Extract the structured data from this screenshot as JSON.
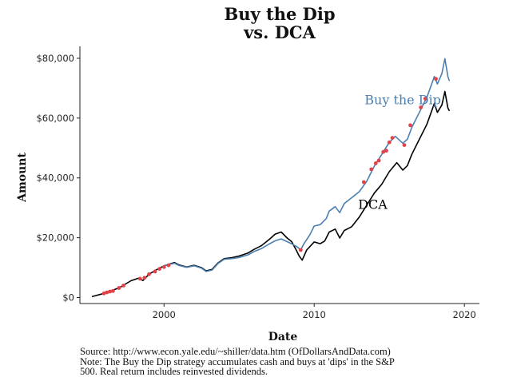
{
  "chart_data": {
    "type": "line",
    "title_line1": "Buy the Dip",
    "title_line2": "vs. DCA",
    "xlabel": "Date",
    "ylabel": "Amount",
    "xlim": [
      1994.4,
      2021.0
    ],
    "ylim": [
      -2000,
      84000
    ],
    "grid": false,
    "x_ticks": [
      {
        "value": 2000,
        "label": "2000"
      },
      {
        "value": 2010,
        "label": "2010"
      },
      {
        "value": 2020,
        "label": "2020"
      }
    ],
    "y_ticks": [
      {
        "value": 0,
        "label": "$0"
      },
      {
        "value": 20000,
        "label": "$20,000"
      },
      {
        "value": 40000,
        "label": "$40,000"
      },
      {
        "value": 60000,
        "label": "$60,000"
      },
      {
        "value": 80000,
        "label": "$80,000"
      }
    ],
    "series": [
      {
        "name": "DCA",
        "color": "#000000",
        "label_at": [
          2013.9,
          29600
        ],
        "points": [
          [
            1995.2,
            300
          ],
          [
            1996.0,
            1400
          ],
          [
            1997.0,
            3200
          ],
          [
            1997.8,
            5600
          ],
          [
            1998.3,
            6500
          ],
          [
            1998.6,
            5700
          ],
          [
            1999.0,
            7800
          ],
          [
            1999.5,
            9300
          ],
          [
            2000.0,
            10600
          ],
          [
            2000.7,
            11700
          ],
          [
            2001.0,
            10900
          ],
          [
            2001.5,
            10200
          ],
          [
            2002.0,
            10800
          ],
          [
            2002.5,
            10000
          ],
          [
            2002.8,
            8900
          ],
          [
            2003.2,
            9400
          ],
          [
            2003.6,
            11600
          ],
          [
            2004.0,
            13000
          ],
          [
            2004.5,
            13300
          ],
          [
            2005.0,
            13900
          ],
          [
            2005.6,
            14900
          ],
          [
            2006.0,
            16100
          ],
          [
            2006.5,
            17400
          ],
          [
            2007.0,
            19400
          ],
          [
            2007.4,
            21200
          ],
          [
            2007.8,
            21900
          ],
          [
            2008.2,
            19900
          ],
          [
            2008.5,
            18700
          ],
          [
            2008.8,
            15900
          ],
          [
            2009.0,
            13900
          ],
          [
            2009.2,
            12500
          ],
          [
            2009.5,
            15900
          ],
          [
            2010.0,
            18600
          ],
          [
            2010.4,
            18000
          ],
          [
            2010.7,
            18900
          ],
          [
            2011.0,
            21900
          ],
          [
            2011.4,
            22900
          ],
          [
            2011.7,
            19900
          ],
          [
            2012.0,
            22400
          ],
          [
            2012.5,
            23700
          ],
          [
            2013.0,
            26900
          ],
          [
            2013.5,
            30900
          ],
          [
            2014.0,
            34900
          ],
          [
            2014.5,
            37900
          ],
          [
            2015.0,
            42100
          ],
          [
            2015.5,
            45100
          ],
          [
            2015.9,
            42600
          ],
          [
            2016.2,
            44100
          ],
          [
            2016.5,
            47900
          ],
          [
            2017.0,
            52900
          ],
          [
            2017.5,
            57900
          ],
          [
            2018.0,
            64900
          ],
          [
            2018.2,
            61900
          ],
          [
            2018.5,
            64400
          ],
          [
            2018.7,
            68900
          ],
          [
            2018.9,
            63400
          ],
          [
            2019.0,
            62400
          ]
        ]
      },
      {
        "name": "Buy the Dip",
        "color": "#4a7fb0",
        "label_at": [
          2015.9,
          64600
        ],
        "points": [
          [
            2000.0,
            10600
          ],
          [
            2000.7,
            11500
          ],
          [
            2001.0,
            10700
          ],
          [
            2001.5,
            10100
          ],
          [
            2002.0,
            10600
          ],
          [
            2002.5,
            9800
          ],
          [
            2002.8,
            8700
          ],
          [
            2003.2,
            9200
          ],
          [
            2003.6,
            11400
          ],
          [
            2004.0,
            12800
          ],
          [
            2004.5,
            13000
          ],
          [
            2005.0,
            13400
          ],
          [
            2005.6,
            14300
          ],
          [
            2006.0,
            15400
          ],
          [
            2006.5,
            16400
          ],
          [
            2007.0,
            17900
          ],
          [
            2007.4,
            19000
          ],
          [
            2007.8,
            19600
          ],
          [
            2008.2,
            18700
          ],
          [
            2008.6,
            17700
          ],
          [
            2008.9,
            16800
          ],
          [
            2009.1,
            15900
          ],
          [
            2009.3,
            17900
          ],
          [
            2009.7,
            20900
          ],
          [
            2010.0,
            23900
          ],
          [
            2010.4,
            24400
          ],
          [
            2010.8,
            26400
          ],
          [
            2011.0,
            28900
          ],
          [
            2011.4,
            30400
          ],
          [
            2011.7,
            28400
          ],
          [
            2012.0,
            31400
          ],
          [
            2012.5,
            33400
          ],
          [
            2013.0,
            35400
          ],
          [
            2013.5,
            38900
          ],
          [
            2014.0,
            43900
          ],
          [
            2014.5,
            47900
          ],
          [
            2015.0,
            51900
          ],
          [
            2015.4,
            53900
          ],
          [
            2015.9,
            51600
          ],
          [
            2016.2,
            52900
          ],
          [
            2016.5,
            56900
          ],
          [
            2017.0,
            61900
          ],
          [
            2017.5,
            66900
          ],
          [
            2018.0,
            73900
          ],
          [
            2018.2,
            71400
          ],
          [
            2018.5,
            74900
          ],
          [
            2018.7,
            79900
          ],
          [
            2018.9,
            73900
          ],
          [
            2019.0,
            72400
          ]
        ]
      }
    ],
    "dip_purchases": {
      "color": "#e0444a",
      "points": [
        [
          1996.0,
          1400
        ],
        [
          1996.2,
          1700
        ],
        [
          1996.4,
          2000
        ],
        [
          1996.6,
          2200
        ],
        [
          1997.0,
          3200
        ],
        [
          1997.3,
          4000
        ],
        [
          1998.4,
          6300
        ],
        [
          1998.7,
          6600
        ],
        [
          1999.0,
          7800
        ],
        [
          1999.4,
          8700
        ],
        [
          1999.7,
          9600
        ],
        [
          2000.0,
          10200
        ],
        [
          2000.3,
          10800
        ],
        [
          2009.1,
          15900
        ],
        [
          2013.3,
          38600
        ],
        [
          2013.8,
          42900
        ],
        [
          2014.1,
          44900
        ],
        [
          2014.3,
          45800
        ],
        [
          2014.6,
          48700
        ],
        [
          2014.8,
          49100
        ],
        [
          2015.0,
          51900
        ],
        [
          2015.2,
          53400
        ],
        [
          2016.0,
          51000
        ],
        [
          2016.4,
          57600
        ],
        [
          2017.1,
          63600
        ],
        [
          2017.4,
          66500
        ],
        [
          2018.1,
          73100
        ]
      ]
    }
  },
  "caption": {
    "line1": "Source:  http://www.econ.yale.edu/~shiller/data.htm (OfDollarsAndData.com)",
    "line2": "Note: The Buy the Dip strategy accumulates cash and buys at 'dips' in the S&P",
    "line3": "500. Real return includes reinvested dividends."
  }
}
